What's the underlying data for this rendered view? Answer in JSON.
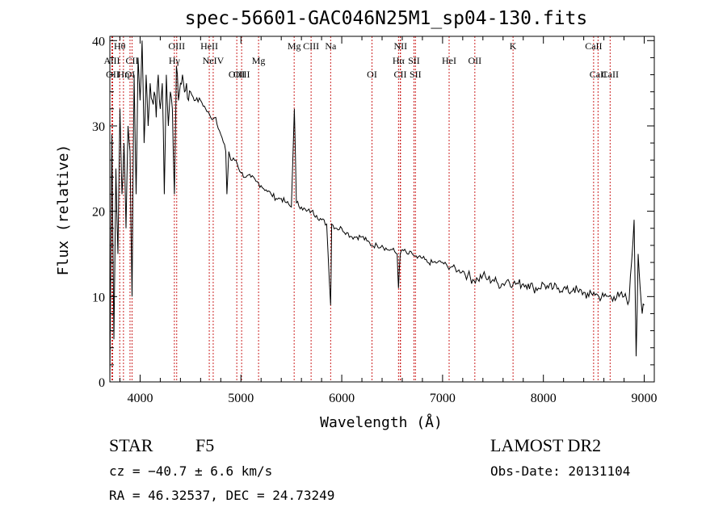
{
  "chart_data": {
    "type": "line",
    "title": "spec-56601-GAC046N25M1_sp04-130.fits",
    "xlabel": "Wavelength (Å)",
    "ylabel": "Flux (relative)",
    "xlim": [
      3700,
      9100
    ],
    "ylim": [
      0,
      40.5
    ],
    "x_ticks": [
      4000,
      5000,
      6000,
      7000,
      8000,
      9000
    ],
    "y_ticks": [
      0,
      10,
      20,
      30,
      40
    ],
    "grid": false,
    "line_color": "#000000",
    "marker_color": "#cc2222",
    "series": [
      {
        "x": [
          3700,
          3720,
          3740,
          3760,
          3780,
          3800,
          3820,
          3840,
          3860,
          3880,
          3900,
          3920,
          3940,
          3960,
          3980,
          4000,
          4020,
          4040,
          4060,
          4080,
          4100,
          4120,
          4140,
          4160,
          4180,
          4200,
          4220,
          4240,
          4260,
          4280,
          4300,
          4320,
          4340,
          4360,
          4380,
          4400,
          4420,
          4440,
          4460,
          4480,
          4500,
          4550,
          4600,
          4650,
          4700,
          4750,
          4800,
          4850,
          4861,
          4880,
          4900,
          4950,
          5000,
          5050,
          5100,
          5150,
          5200,
          5250,
          5300,
          5350,
          5400,
          5450,
          5500,
          5530,
          5550,
          5600,
          5650,
          5700,
          5750,
          5800,
          5850,
          5890,
          5900,
          5950,
          6000,
          6050,
          6100,
          6150,
          6200,
          6250,
          6300,
          6350,
          6400,
          6450,
          6500,
          6550,
          6563,
          6580,
          6600,
          6650,
          6700,
          6750,
          6800,
          6850,
          6900,
          6950,
          7000,
          7050,
          7100,
          7150,
          7200,
          7250,
          7300,
          7350,
          7400,
          7450,
          7500,
          7550,
          7600,
          7650,
          7700,
          7750,
          7800,
          7850,
          7900,
          7950,
          8000,
          8050,
          8100,
          8150,
          8200,
          8250,
          8300,
          8350,
          8400,
          8450,
          8500,
          8550,
          8600,
          8650,
          8700,
          8750,
          8800,
          8850,
          8900,
          8920,
          8940,
          8960,
          8980,
          9000
        ],
        "values": [
          0,
          29,
          5,
          25,
          15,
          32,
          22,
          28,
          18,
          30,
          27,
          10,
          36,
          22,
          38,
          33,
          40,
          28,
          36,
          30,
          35,
          33,
          34,
          31,
          36,
          32,
          35,
          22,
          36,
          30,
          34,
          32,
          22,
          37,
          33,
          35,
          36,
          34,
          35,
          33,
          34,
          33,
          33,
          32,
          31,
          31,
          29,
          27,
          22,
          27,
          26,
          26,
          24.5,
          24,
          24,
          23.5,
          23,
          22.5,
          22,
          21.5,
          21.5,
          21,
          20.5,
          32,
          21,
          20.5,
          20,
          20,
          19.5,
          19,
          18.5,
          9,
          18.5,
          18,
          18,
          17.5,
          17,
          17,
          17,
          16.5,
          16,
          16,
          16,
          15.5,
          15.5,
          15,
          11,
          15,
          15.5,
          15,
          15,
          14.5,
          14.5,
          14,
          14,
          14,
          14,
          13.5,
          13.5,
          13,
          13,
          12.5,
          12,
          12,
          12.5,
          12,
          12,
          11.5,
          11.5,
          12,
          11.5,
          11.5,
          11.5,
          11.5,
          11,
          11,
          11.5,
          11,
          11,
          11,
          11,
          10.5,
          11,
          10.5,
          10.5,
          10,
          10.5,
          10,
          10,
          10,
          10,
          10,
          10,
          9.5,
          19,
          3,
          15,
          11,
          8,
          9
        ]
      }
    ],
    "lines": [
      {
        "label": "Hθ",
        "x": 3798,
        "row": 1
      },
      {
        "label": "AlII",
        "x": 3720,
        "row": 2
      },
      {
        "label": "OII",
        "x": 3728,
        "row": 3
      },
      {
        "label": "Hη",
        "x": 3835,
        "row": 3
      },
      {
        "label": "OI",
        "x": 3900,
        "row": 3
      },
      {
        "label": "CII",
        "x": 3920,
        "row": 2
      },
      {
        "label": "OIII",
        "x": 4363,
        "row": 1
      },
      {
        "label": "Hγ",
        "x": 4340,
        "row": 2
      },
      {
        "label": "HeII",
        "x": 4686,
        "row": 1
      },
      {
        "label": "NeIV",
        "x": 4725,
        "row": 2
      },
      {
        "label": "OIII",
        "x": 4959,
        "row": 3
      },
      {
        "label": "OIII",
        "x": 5007,
        "row": 3
      },
      {
        "label": "Mg",
        "x": 5175,
        "row": 2
      },
      {
        "label": "Mg",
        "x": 5528,
        "row": 1
      },
      {
        "label": "CIII",
        "x": 5696,
        "row": 1
      },
      {
        "label": "Na",
        "x": 5890,
        "row": 1
      },
      {
        "label": "OI",
        "x": 6300,
        "row": 3
      },
      {
        "label": "NII",
        "x": 6583,
        "row": 1
      },
      {
        "label": "Hα",
        "x": 6563,
        "row": 2
      },
      {
        "label": "SII",
        "x": 6716,
        "row": 2
      },
      {
        "label": "SII",
        "x": 6731,
        "row": 3
      },
      {
        "label": "CII",
        "x": 6580,
        "row": 3
      },
      {
        "label": "OII",
        "x": 7320,
        "row": 2
      },
      {
        "label": "K",
        "x": 7699,
        "row": 1
      },
      {
        "label": "HeI",
        "x": 7065,
        "row": 2
      },
      {
        "label": "CaII",
        "x": 8498,
        "row": 1
      },
      {
        "label": "CaII",
        "x": 8542,
        "row": 3
      },
      {
        "label": "CaII",
        "x": 8662,
        "row": 3
      }
    ]
  },
  "info": {
    "object_class": "STAR",
    "subclass": "F5",
    "survey": "LAMOST DR2",
    "cz": "cz = −40.7 ± 6.6 km/s",
    "obs_date": "Obs-Date: 20131104",
    "coords": "RA =  46.32537, DEC =  24.73249"
  }
}
